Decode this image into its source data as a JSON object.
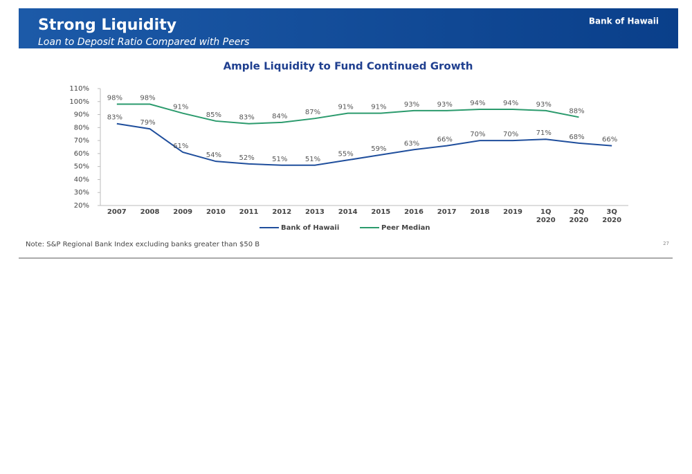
{
  "header": {
    "title": "Strong Liquidity",
    "subtitle": "Loan to Deposit Ratio Compared with Peers",
    "logo": "Bank of Hawaii"
  },
  "chart_data": {
    "type": "line",
    "title": "Ample Liquidity to Fund Continued Growth",
    "categories": [
      "2007",
      "2008",
      "2009",
      "2010",
      "2011",
      "2012",
      "2013",
      "2014",
      "2015",
      "2016",
      "2017",
      "2018",
      "2019",
      "1Q 2020",
      "2Q 2020",
      "3Q 2020"
    ],
    "series": [
      {
        "name": "Bank of Hawaii",
        "color": "#1f4e9c",
        "values": [
          83,
          79,
          61,
          54,
          52,
          51,
          51,
          55,
          59,
          63,
          66,
          70,
          70,
          71,
          68,
          66
        ],
        "value_labels": [
          "83%",
          "79%",
          "61%",
          "54%",
          "52%",
          "51%",
          "51%",
          "55%",
          "59%",
          "63%",
          "66%",
          "70%",
          "70%",
          "71%",
          "68%",
          "66%"
        ]
      },
      {
        "name": "Peer Median",
        "color": "#2a9a6c",
        "values": [
          98,
          98,
          91,
          85,
          83,
          84,
          87,
          91,
          91,
          93,
          93,
          94,
          94,
          93,
          88,
          null
        ],
        "value_labels": [
          "98%",
          "98%",
          "91%",
          "85%",
          "83%",
          "84%",
          "87%",
          "91%",
          "91%",
          "93%",
          "93%",
          "94%",
          "94%",
          "93%",
          "88%",
          null
        ]
      }
    ],
    "ylim": [
      20,
      110
    ],
    "yticks": [
      {
        "value": 20,
        "label": "20%"
      },
      {
        "value": 30,
        "label": "30%"
      },
      {
        "value": 40,
        "label": "40%"
      },
      {
        "value": 50,
        "label": "50%"
      },
      {
        "value": 60,
        "label": "60%"
      },
      {
        "value": 70,
        "label": "70%"
      },
      {
        "value": 80,
        "label": "80%"
      },
      {
        "value": 90,
        "label": "90%"
      },
      {
        "value": 100,
        "label": "100%"
      },
      {
        "value": 110,
        "label": "110%"
      }
    ],
    "legend": "bottom"
  },
  "footer": {
    "note": "Note: S&P Regional Bank Index excluding banks greater than $50 B",
    "page": "27"
  }
}
